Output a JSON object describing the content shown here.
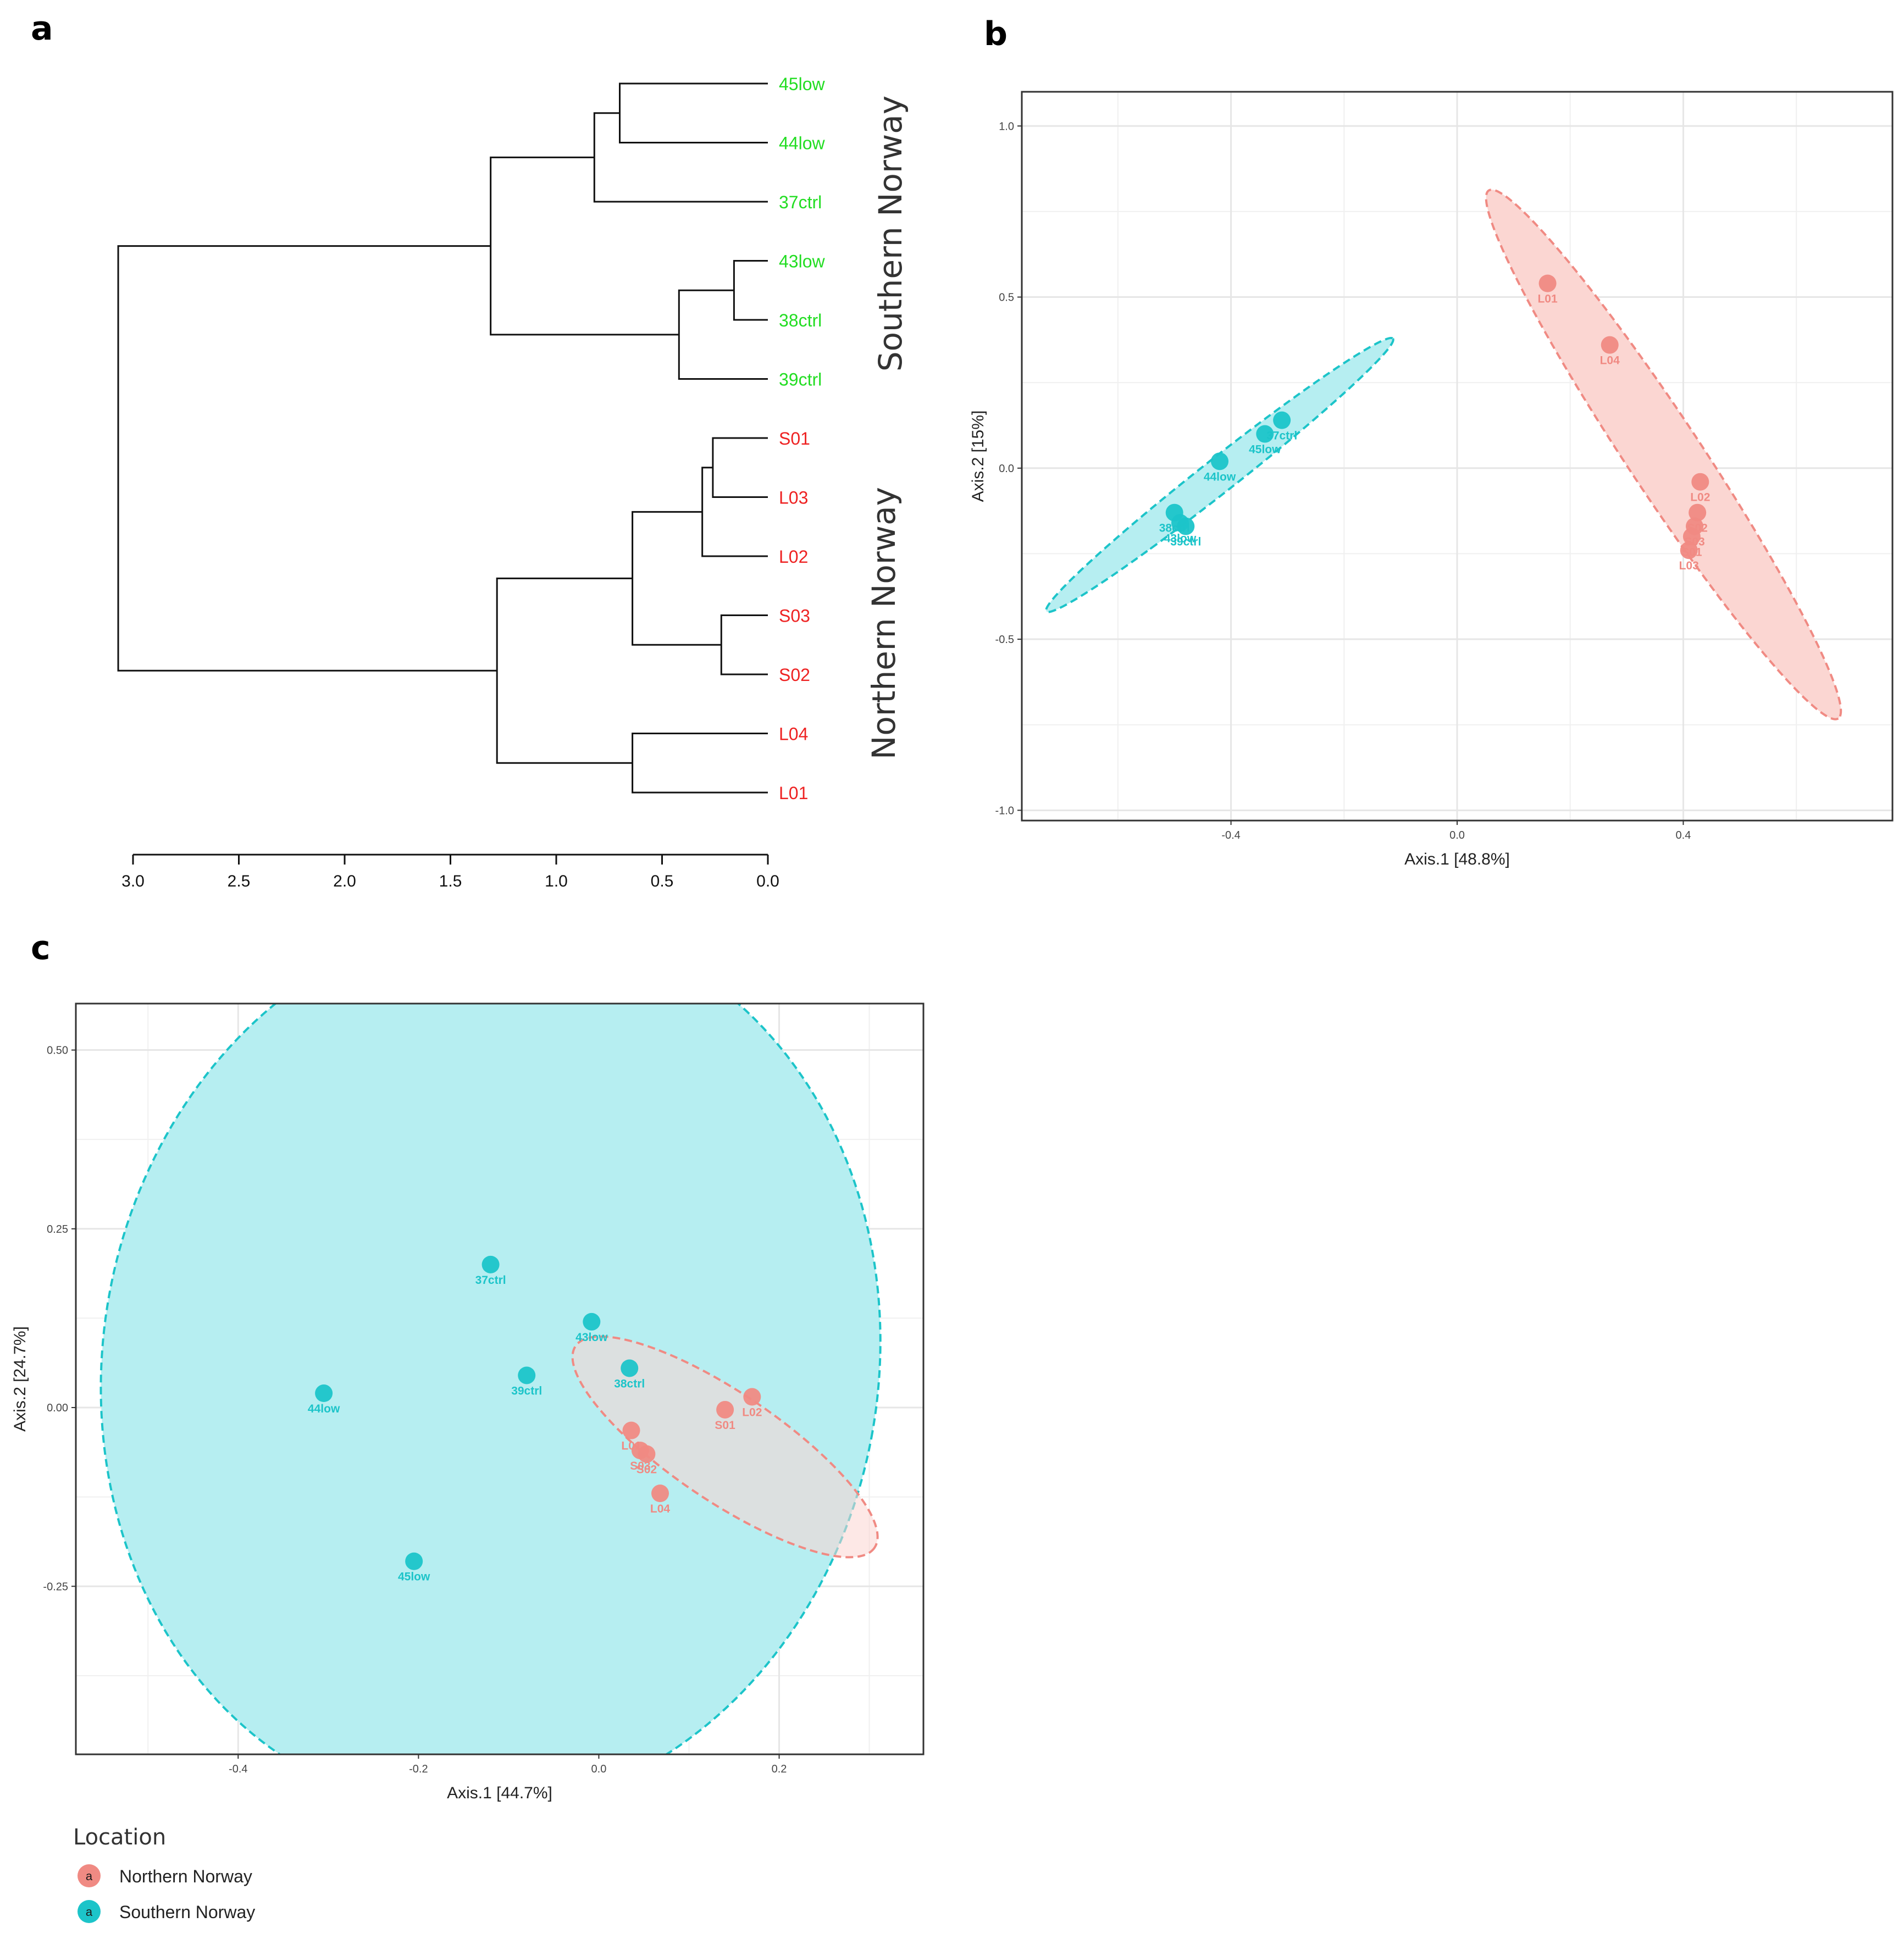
{
  "panels": {
    "a": "a",
    "b": "b",
    "c": "c"
  },
  "colors": {
    "southern_leaf": "#22dd22",
    "northern_leaf": "#ee2222",
    "southern_point": "#1cc4c9",
    "northern_point": "#f08a83",
    "southern_fill": "#b6eef1",
    "northern_fill": "#fbd6d2",
    "grid": "#e6e6e6"
  },
  "chart_data": [
    {
      "id": "a",
      "type": "dendrogram",
      "xlim": [
        3.0,
        0.0
      ],
      "xticks": [
        "3.0",
        "2.5",
        "2.0",
        "1.5",
        "1.0",
        "0.5",
        "0.0"
      ],
      "group_labels": [
        "Southern Norway",
        "Northern Norway"
      ],
      "leaves": [
        {
          "label": "45low",
          "group": "south"
        },
        {
          "label": "44low",
          "group": "south"
        },
        {
          "label": "37ctrl",
          "group": "south"
        },
        {
          "label": "43low",
          "group": "south"
        },
        {
          "label": "38ctrl",
          "group": "south"
        },
        {
          "label": "39ctrl",
          "group": "south"
        },
        {
          "label": "S01",
          "group": "north"
        },
        {
          "label": "L03",
          "group": "north"
        },
        {
          "label": "L02",
          "group": "north"
        },
        {
          "label": "S03",
          "group": "north"
        },
        {
          "label": "S02",
          "group": "north"
        },
        {
          "label": "L04",
          "group": "north"
        },
        {
          "label": "L01",
          "group": "north"
        }
      ],
      "merges": [
        {
          "id": "m1",
          "children": [
            "45low",
            "44low"
          ],
          "height": 0.7
        },
        {
          "id": "m2",
          "children": [
            "m1",
            "37ctrl"
          ],
          "height": 0.82
        },
        {
          "id": "m3",
          "children": [
            "43low",
            "38ctrl"
          ],
          "height": 0.16
        },
        {
          "id": "m4",
          "children": [
            "m3",
            "39ctrl"
          ],
          "height": 0.42
        },
        {
          "id": "m5",
          "children": [
            "m2",
            "m4"
          ],
          "height": 1.31
        },
        {
          "id": "m6",
          "children": [
            "S01",
            "L03"
          ],
          "height": 0.26
        },
        {
          "id": "m7",
          "children": [
            "m6",
            "L02"
          ],
          "height": 0.31
        },
        {
          "id": "m8",
          "children": [
            "S03",
            "S02"
          ],
          "height": 0.22
        },
        {
          "id": "m9",
          "children": [
            "m7",
            "m8"
          ],
          "height": 0.64
        },
        {
          "id": "m10",
          "children": [
            "L04",
            "L01"
          ],
          "height": 0.64
        },
        {
          "id": "m11",
          "children": [
            "m9",
            "m10"
          ],
          "height": 1.28
        },
        {
          "id": "m12",
          "children": [
            "m5",
            "m11"
          ],
          "height": 3.07
        }
      ]
    },
    {
      "id": "b",
      "type": "scatter",
      "xlabel": "Axis.1   [48.8%]",
      "ylabel": "Axis.2   [15%]",
      "xlim": [
        -0.77,
        0.77
      ],
      "ylim": [
        -1.03,
        1.1
      ],
      "xticks": [
        {
          "value": -0.4,
          "label": "-0.4"
        },
        {
          "value": 0.0,
          "label": "0.0"
        },
        {
          "value": 0.4,
          "label": "0.4"
        }
      ],
      "yticks": [
        {
          "value": -1.0,
          "label": "-1.0"
        },
        {
          "value": -0.5,
          "label": "-0.5"
        },
        {
          "value": 0.0,
          "label": "0.0"
        },
        {
          "value": 0.5,
          "label": "0.5"
        },
        {
          "value": 1.0,
          "label": "1.0"
        }
      ],
      "minor_x": [
        -0.6,
        -0.2,
        0.2,
        0.6
      ],
      "minor_y": [
        -0.75,
        -0.25,
        0.25,
        0.75
      ],
      "ellipses": [
        {
          "group": "south",
          "cx": -0.42,
          "cy": -0.02,
          "rx": 0.39,
          "ry": 0.03,
          "angle_deg": 38.2
        },
        {
          "group": "north",
          "cx": 0.365,
          "cy": 0.04,
          "rx": 0.56,
          "ry": 0.065,
          "angle_deg": -56.5
        }
      ],
      "points": [
        {
          "label": "37ctrl",
          "group": "south",
          "x": -0.31,
          "y": 0.14
        },
        {
          "label": "45low",
          "group": "south",
          "x": -0.34,
          "y": 0.1
        },
        {
          "label": "44low",
          "group": "south",
          "x": -0.42,
          "y": 0.02
        },
        {
          "label": "38ctrl",
          "group": "south",
          "x": -0.5,
          "y": -0.13
        },
        {
          "label": "43low",
          "group": "south",
          "x": -0.49,
          "y": -0.16
        },
        {
          "label": "39ctrl",
          "group": "south",
          "x": -0.48,
          "y": -0.17
        },
        {
          "label": "L01",
          "group": "north",
          "x": 0.16,
          "y": 0.54
        },
        {
          "label": "L04",
          "group": "north",
          "x": 0.27,
          "y": 0.36
        },
        {
          "label": "L02",
          "group": "north",
          "x": 0.43,
          "y": -0.04
        },
        {
          "label": "S02",
          "group": "north",
          "x": 0.425,
          "y": -0.13
        },
        {
          "label": "S03",
          "group": "north",
          "x": 0.42,
          "y": -0.17
        },
        {
          "label": "S01",
          "group": "north",
          "x": 0.415,
          "y": -0.2
        },
        {
          "label": "L03",
          "group": "north",
          "x": 0.41,
          "y": -0.24
        }
      ]
    },
    {
      "id": "c",
      "type": "scatter",
      "xlabel": "Axis.1   [44.7%]",
      "ylabel": "Axis.2   [24.7%]",
      "xlim": [
        -0.58,
        0.36
      ],
      "ylim": [
        -0.485,
        0.565
      ],
      "xticks": [
        {
          "value": -0.4,
          "label": "-0.4"
        },
        {
          "value": -0.2,
          "label": "-0.2"
        },
        {
          "value": 0.0,
          "label": "0.0"
        },
        {
          "value": 0.2,
          "label": "0.2"
        }
      ],
      "yticks": [
        {
          "value": -0.25,
          "label": "-0.25"
        },
        {
          "value": 0.0,
          "label": "0.00"
        },
        {
          "value": 0.25,
          "label": "0.25"
        },
        {
          "value": 0.5,
          "label": "0.50"
        }
      ],
      "minor_x": [
        -0.5,
        -0.3,
        -0.1,
        0.1,
        0.3
      ],
      "minor_y": [
        -0.375,
        -0.125,
        0.125,
        0.375
      ],
      "ellipses": [
        {
          "group": "south",
          "cx": -0.12,
          "cy": 0.06,
          "rx": 0.43,
          "ry": 0.5,
          "angle_deg": -10
        },
        {
          "group": "north",
          "cx": 0.14,
          "cy": -0.055,
          "rx": 0.2,
          "ry": 0.06,
          "angle_deg": -34
        }
      ],
      "points": [
        {
          "label": "37ctrl",
          "group": "south",
          "x": -0.12,
          "y": 0.2
        },
        {
          "label": "43low",
          "group": "south",
          "x": -0.008,
          "y": 0.12
        },
        {
          "label": "39ctrl",
          "group": "south",
          "x": -0.08,
          "y": 0.045
        },
        {
          "label": "38ctrl",
          "group": "south",
          "x": 0.034,
          "y": 0.055
        },
        {
          "label": "44low",
          "group": "south",
          "x": -0.305,
          "y": 0.02
        },
        {
          "label": "45low",
          "group": "south",
          "x": -0.205,
          "y": -0.215
        },
        {
          "label": "L02",
          "group": "north",
          "x": 0.17,
          "y": 0.015
        },
        {
          "label": "S01",
          "group": "north",
          "x": 0.14,
          "y": -0.003
        },
        {
          "label": "L01",
          "group": "north",
          "x": 0.036,
          "y": -0.032
        },
        {
          "label": "S03",
          "group": "north",
          "x": 0.046,
          "y": -0.06
        },
        {
          "label": "S02",
          "group": "north",
          "x": 0.053,
          "y": -0.065
        },
        {
          "label": "L04",
          "group": "north",
          "x": 0.068,
          "y": -0.12
        }
      ]
    }
  ],
  "legend": {
    "title": "Location",
    "key_letter": "a",
    "items": [
      {
        "label": "Northern Norway",
        "group": "north"
      },
      {
        "label": "Southern Norway",
        "group": "south"
      }
    ]
  }
}
